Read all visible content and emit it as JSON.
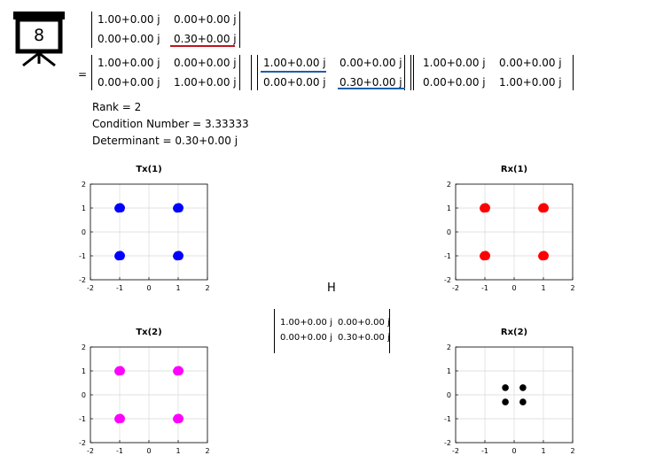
{
  "slide_number": "8",
  "top_matrix": [
    [
      "1.00+0.00 j",
      "0.00+0.00 j"
    ],
    [
      "0.00+0.00 j",
      "0.30+0.00 j"
    ]
  ],
  "equals_sign": "=",
  "svd": {
    "U": [
      [
        "1.00+0.00 j",
        "0.00+0.00 j"
      ],
      [
        "0.00+0.00 j",
        "1.00+0.00 j"
      ]
    ],
    "S": [
      [
        "1.00+0.00 j",
        "0.00+0.00 j"
      ],
      [
        "0.00+0.00 j",
        "0.30+0.00 j"
      ]
    ],
    "V": [
      [
        "1.00+0.00 j",
        "0.00+0.00 j"
      ],
      [
        "0.00+0.00 j",
        "1.00+0.00 j"
      ]
    ]
  },
  "info": {
    "rank": "Rank = 2",
    "condition": "Condition Number = 3.33333",
    "determinant": "Determinant = 0.30+0.00 j"
  },
  "h_label": "H",
  "h_matrix": [
    [
      "1.00+0.00 j",
      "0.00+0.00 j"
    ],
    [
      "0.00+0.00 j",
      "0.30+0.00 j"
    ]
  ],
  "colors": {
    "tx1": "#0000ff",
    "rx1": "#ff0000",
    "tx2": "#ff00ff",
    "rx2": "#000000",
    "red_underline": "#c0141c",
    "blue_underline": "#1f5fa8",
    "grid": "#d9d9d9"
  },
  "chart_data": [
    {
      "type": "scatter",
      "title": "Tx(1)",
      "color": "#0000ff",
      "xlim": [
        -2,
        2
      ],
      "ylim": [
        -2,
        2
      ],
      "xticks": [
        "-2",
        "-1",
        "0",
        "1",
        "2"
      ],
      "yticks": [
        "2",
        "1",
        "0",
        "-1",
        "-2"
      ],
      "grid": true,
      "points": [
        [
          -1,
          1
        ],
        [
          1,
          1
        ],
        [
          -1,
          -1
        ],
        [
          1,
          -1
        ]
      ]
    },
    {
      "type": "scatter",
      "title": "Rx(1)",
      "color": "#ff0000",
      "xlim": [
        -2,
        2
      ],
      "ylim": [
        -2,
        2
      ],
      "xticks": [
        "-2",
        "-1",
        "0",
        "1",
        "2"
      ],
      "yticks": [
        "2",
        "1",
        "0",
        "-1",
        "-2"
      ],
      "grid": true,
      "points": [
        [
          -1,
          1
        ],
        [
          1,
          1
        ],
        [
          -1,
          -1
        ],
        [
          1,
          -1
        ]
      ]
    },
    {
      "type": "scatter",
      "title": "Tx(2)",
      "color": "#ff00ff",
      "xlim": [
        -2,
        2
      ],
      "ylim": [
        -2,
        2
      ],
      "xticks": [
        "-2",
        "-1",
        "0",
        "1",
        "2"
      ],
      "yticks": [
        "2",
        "1",
        "0",
        "-1",
        "-2"
      ],
      "grid": true,
      "points": [
        [
          -1,
          1
        ],
        [
          1,
          1
        ],
        [
          -1,
          -1
        ],
        [
          1,
          -1
        ]
      ]
    },
    {
      "type": "scatter",
      "title": "Rx(2)",
      "color": "#000000",
      "xlim": [
        -2,
        2
      ],
      "ylim": [
        -2,
        2
      ],
      "xticks": [
        "-2",
        "-1",
        "0",
        "1",
        "2"
      ],
      "yticks": [
        "2",
        "1",
        "0",
        "-1",
        "-2"
      ],
      "grid": true,
      "points": [
        [
          -0.3,
          0.3
        ],
        [
          0.3,
          0.3
        ],
        [
          -0.3,
          -0.3
        ],
        [
          0.3,
          -0.3
        ]
      ]
    }
  ]
}
